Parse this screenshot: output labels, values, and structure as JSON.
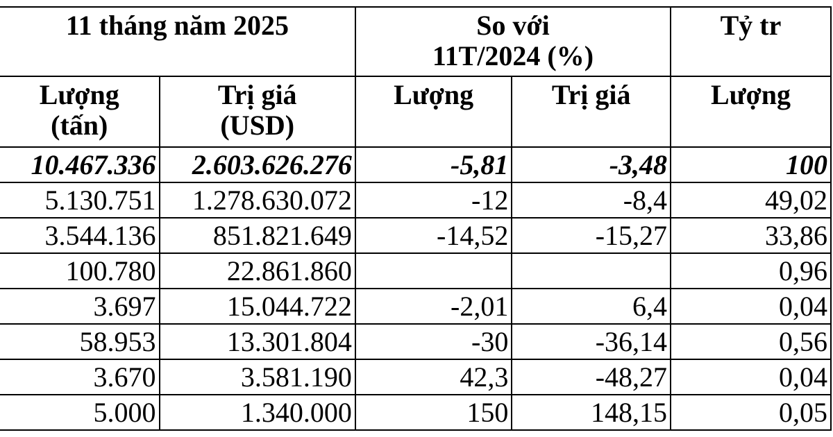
{
  "table": {
    "group_headers": [
      "11 tháng năm 2025",
      "So với\n11T/2024 (%)",
      "Tỷ tr"
    ],
    "column_headers": [
      "Lượng\n(tấn)",
      "Trị giá\n(USD)",
      "Lượng",
      "Trị giá",
      "Lượng"
    ],
    "rows": [
      [
        "10.467.336",
        "2.603.626.276",
        "-5,81",
        "-3,48",
        "100"
      ],
      [
        "5.130.751",
        "1.278.630.072",
        "-12",
        "-8,4",
        "49,02"
      ],
      [
        "3.544.136",
        "851.821.649",
        "-14,52",
        "-15,27",
        "33,86"
      ],
      [
        "100.780",
        "22.861.860",
        null,
        null,
        "0,96"
      ],
      [
        "3.697",
        "15.044.722",
        "-2,01",
        "6,4",
        "0,04"
      ],
      [
        "58.953",
        "13.301.804",
        "-30",
        "-36,14",
        "0,56"
      ],
      [
        "3.670",
        "3.581.190",
        "42,3",
        "-48,27",
        "0,04"
      ],
      [
        "5.000",
        "1.340.000",
        "150",
        "148,15",
        "0,05"
      ]
    ]
  }
}
